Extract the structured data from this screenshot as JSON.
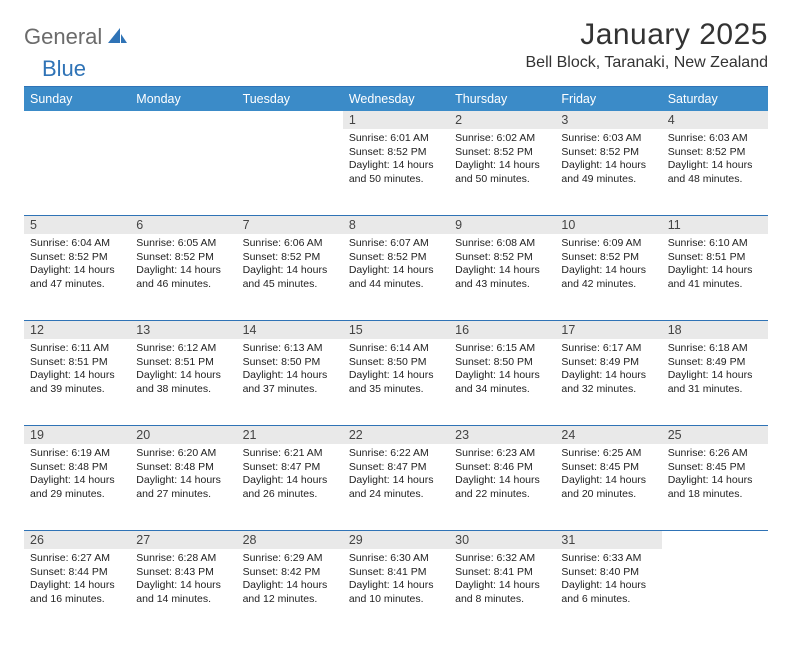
{
  "brand": {
    "prefix": "General",
    "suffix": "Blue"
  },
  "title": "January 2025",
  "location": "Bell Block, Taranaki, New Zealand",
  "colors": {
    "header_bg": "#3b8bc8",
    "rule": "#2f73b6",
    "daynum_bg": "#e9e9e9",
    "text": "#222222",
    "logo_gray": "#6b6b6b",
    "logo_blue": "#2f73b6"
  },
  "weekdays": [
    "Sunday",
    "Monday",
    "Tuesday",
    "Wednesday",
    "Thursday",
    "Friday",
    "Saturday"
  ],
  "weeks": [
    [
      null,
      null,
      null,
      {
        "n": "1",
        "sr": "6:01 AM",
        "ss": "8:52 PM",
        "dl": "14 hours and 50 minutes."
      },
      {
        "n": "2",
        "sr": "6:02 AM",
        "ss": "8:52 PM",
        "dl": "14 hours and 50 minutes."
      },
      {
        "n": "3",
        "sr": "6:03 AM",
        "ss": "8:52 PM",
        "dl": "14 hours and 49 minutes."
      },
      {
        "n": "4",
        "sr": "6:03 AM",
        "ss": "8:52 PM",
        "dl": "14 hours and 48 minutes."
      }
    ],
    [
      {
        "n": "5",
        "sr": "6:04 AM",
        "ss": "8:52 PM",
        "dl": "14 hours and 47 minutes."
      },
      {
        "n": "6",
        "sr": "6:05 AM",
        "ss": "8:52 PM",
        "dl": "14 hours and 46 minutes."
      },
      {
        "n": "7",
        "sr": "6:06 AM",
        "ss": "8:52 PM",
        "dl": "14 hours and 45 minutes."
      },
      {
        "n": "8",
        "sr": "6:07 AM",
        "ss": "8:52 PM",
        "dl": "14 hours and 44 minutes."
      },
      {
        "n": "9",
        "sr": "6:08 AM",
        "ss": "8:52 PM",
        "dl": "14 hours and 43 minutes."
      },
      {
        "n": "10",
        "sr": "6:09 AM",
        "ss": "8:52 PM",
        "dl": "14 hours and 42 minutes."
      },
      {
        "n": "11",
        "sr": "6:10 AM",
        "ss": "8:51 PM",
        "dl": "14 hours and 41 minutes."
      }
    ],
    [
      {
        "n": "12",
        "sr": "6:11 AM",
        "ss": "8:51 PM",
        "dl": "14 hours and 39 minutes."
      },
      {
        "n": "13",
        "sr": "6:12 AM",
        "ss": "8:51 PM",
        "dl": "14 hours and 38 minutes."
      },
      {
        "n": "14",
        "sr": "6:13 AM",
        "ss": "8:50 PM",
        "dl": "14 hours and 37 minutes."
      },
      {
        "n": "15",
        "sr": "6:14 AM",
        "ss": "8:50 PM",
        "dl": "14 hours and 35 minutes."
      },
      {
        "n": "16",
        "sr": "6:15 AM",
        "ss": "8:50 PM",
        "dl": "14 hours and 34 minutes."
      },
      {
        "n": "17",
        "sr": "6:17 AM",
        "ss": "8:49 PM",
        "dl": "14 hours and 32 minutes."
      },
      {
        "n": "18",
        "sr": "6:18 AM",
        "ss": "8:49 PM",
        "dl": "14 hours and 31 minutes."
      }
    ],
    [
      {
        "n": "19",
        "sr": "6:19 AM",
        "ss": "8:48 PM",
        "dl": "14 hours and 29 minutes."
      },
      {
        "n": "20",
        "sr": "6:20 AM",
        "ss": "8:48 PM",
        "dl": "14 hours and 27 minutes."
      },
      {
        "n": "21",
        "sr": "6:21 AM",
        "ss": "8:47 PM",
        "dl": "14 hours and 26 minutes."
      },
      {
        "n": "22",
        "sr": "6:22 AM",
        "ss": "8:47 PM",
        "dl": "14 hours and 24 minutes."
      },
      {
        "n": "23",
        "sr": "6:23 AM",
        "ss": "8:46 PM",
        "dl": "14 hours and 22 minutes."
      },
      {
        "n": "24",
        "sr": "6:25 AM",
        "ss": "8:45 PM",
        "dl": "14 hours and 20 minutes."
      },
      {
        "n": "25",
        "sr": "6:26 AM",
        "ss": "8:45 PM",
        "dl": "14 hours and 18 minutes."
      }
    ],
    [
      {
        "n": "26",
        "sr": "6:27 AM",
        "ss": "8:44 PM",
        "dl": "14 hours and 16 minutes."
      },
      {
        "n": "27",
        "sr": "6:28 AM",
        "ss": "8:43 PM",
        "dl": "14 hours and 14 minutes."
      },
      {
        "n": "28",
        "sr": "6:29 AM",
        "ss": "8:42 PM",
        "dl": "14 hours and 12 minutes."
      },
      {
        "n": "29",
        "sr": "6:30 AM",
        "ss": "8:41 PM",
        "dl": "14 hours and 10 minutes."
      },
      {
        "n": "30",
        "sr": "6:32 AM",
        "ss": "8:41 PM",
        "dl": "14 hours and 8 minutes."
      },
      {
        "n": "31",
        "sr": "6:33 AM",
        "ss": "8:40 PM",
        "dl": "14 hours and 6 minutes."
      },
      null
    ]
  ],
  "labels": {
    "sunrise": "Sunrise:",
    "sunset": "Sunset:",
    "daylight": "Daylight:"
  }
}
